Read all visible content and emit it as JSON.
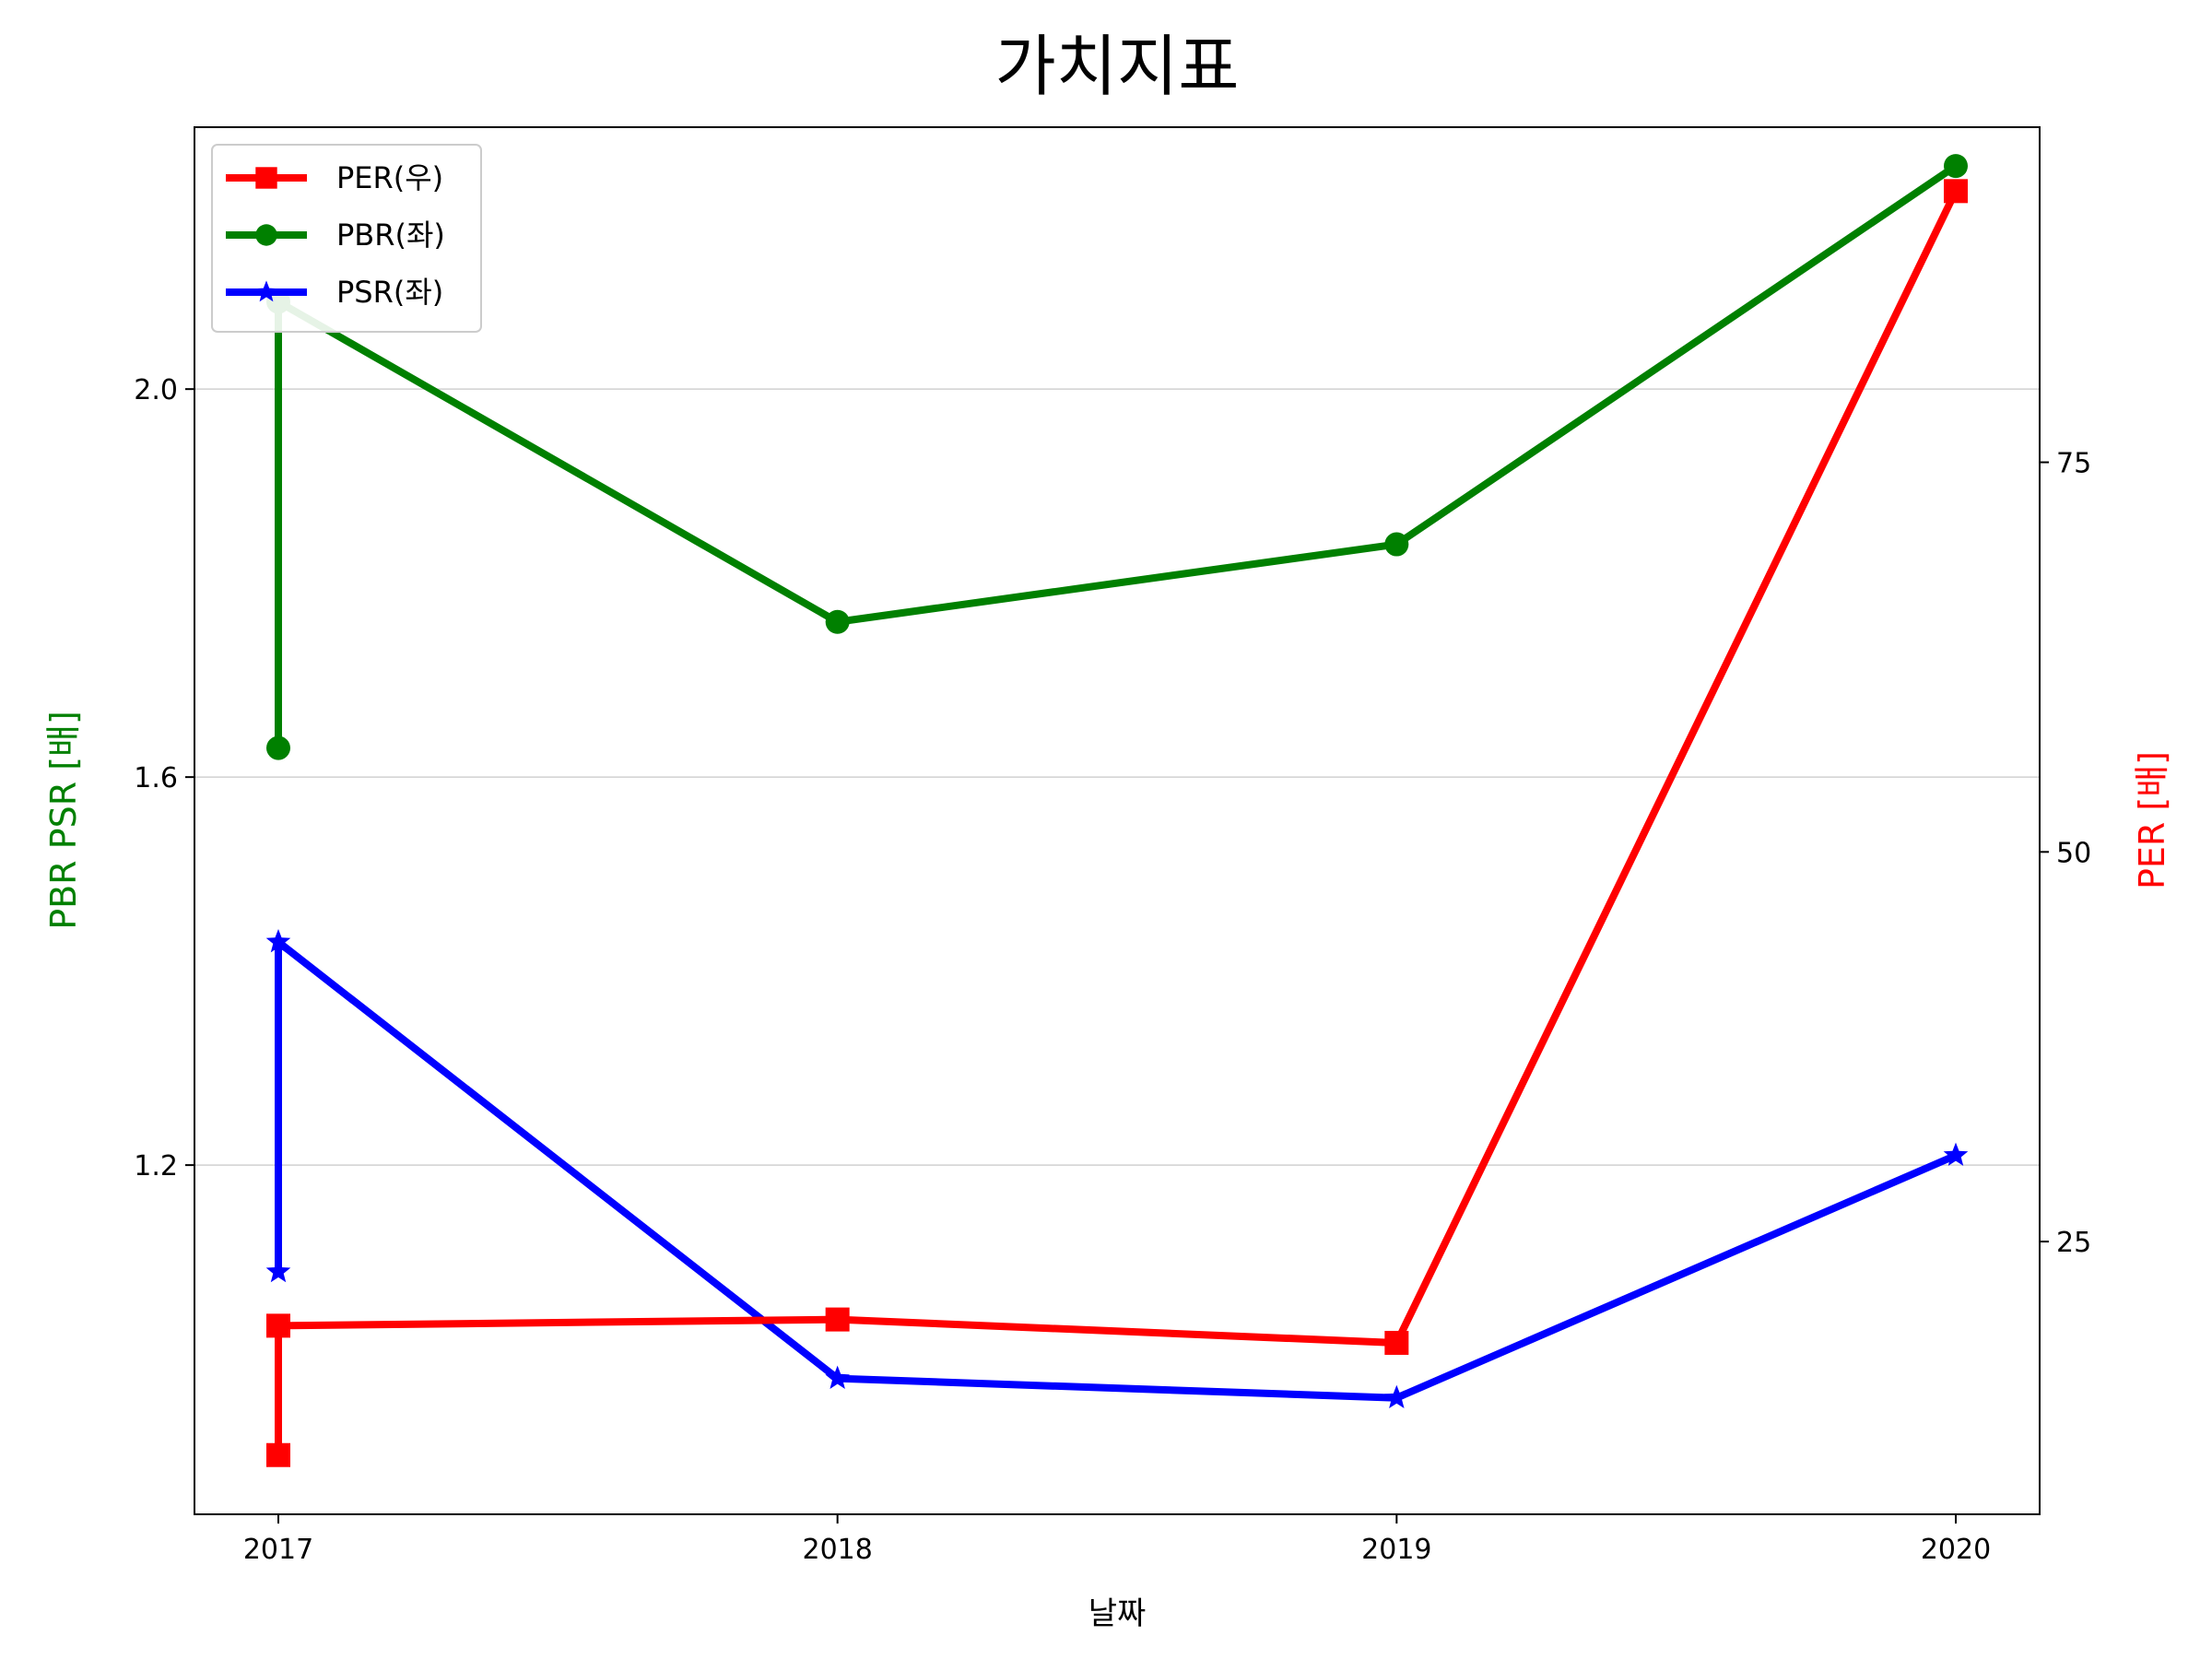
{
  "chart_data": {
    "type": "line",
    "title": "가치지표",
    "xlabel": "날짜",
    "ylabel_left": "PBR PSR [배]",
    "ylabel_right": "PER [배]",
    "x_ticks": [
      "2017",
      "2018",
      "2019",
      "2020"
    ],
    "xlim": [
      2016.85,
      2020.15
    ],
    "ylim_left": [
      0.84,
      2.27
    ],
    "ylim_right": [
      7.5,
      96.5
    ],
    "y_ticks_left": [
      {
        "value": 2.0,
        "label": "2.0"
      },
      {
        "value": 1.6,
        "label": "1.6"
      },
      {
        "value": 1.2,
        "label": "1.2"
      }
    ],
    "y_ticks_right": [
      {
        "value": 75,
        "label": "75"
      },
      {
        "value": 50,
        "label": "50"
      },
      {
        "value": 25,
        "label": "25"
      }
    ],
    "grid": "horizontal (left axis)",
    "legend_position": "top-left",
    "series": [
      {
        "name": "PER(우)",
        "axis": "right",
        "color": "#ff0000",
        "marker": "square",
        "x": [
          2017,
          2017,
          2018,
          2019,
          2020
        ],
        "values": [
          11.3,
          19.6,
          20.0,
          18.5,
          92.4
        ]
      },
      {
        "name": "PBR(좌)",
        "axis": "left",
        "color": "#008000",
        "marker": "circle",
        "x": [
          2017,
          2017,
          2018,
          2019,
          2020
        ],
        "values": [
          1.63,
          2.09,
          1.76,
          1.84,
          2.23
        ]
      },
      {
        "name": "PSR(좌)",
        "axis": "left",
        "color": "#0000ff",
        "marker": "star",
        "x": [
          2017,
          2017,
          2018,
          2019,
          2020
        ],
        "values": [
          1.09,
          1.43,
          0.98,
          0.96,
          1.21
        ]
      }
    ]
  }
}
